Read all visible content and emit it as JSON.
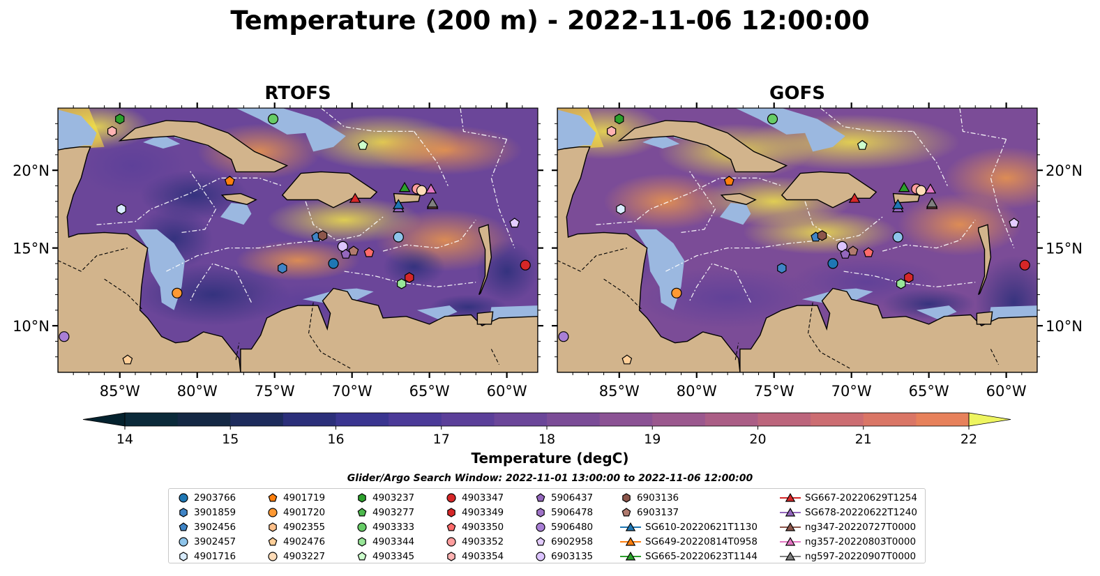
{
  "figure": {
    "title": "Temperature (200 m) - 2022-11-06 12:00:00",
    "panels": [
      {
        "title": "RTOFS"
      },
      {
        "title": "GOFS"
      }
    ]
  },
  "chart_data": {
    "type": "map",
    "variable": "Temperature (200 m)",
    "datetime": "2022-11-06 12:00:00",
    "lon_range": [
      -89,
      -58
    ],
    "lat_range": [
      7,
      24
    ],
    "lon_ticks": [
      "85°W",
      "80°W",
      "75°W",
      "70°W",
      "65°W",
      "60°W"
    ],
    "lon_tick_values": [
      -85,
      -80,
      -75,
      -70,
      -65,
      -60
    ],
    "lat_ticks": [
      "10°N",
      "15°N",
      "20°N"
    ],
    "lat_tick_values": [
      10,
      15,
      20
    ],
    "colorbar": {
      "label": "Temperature (degC)",
      "min": 14,
      "max": 22,
      "step": 0.5,
      "extend": "both",
      "tick_labels": [
        "14",
        "15",
        "16",
        "17",
        "18",
        "19",
        "20",
        "21",
        "22"
      ],
      "colors": [
        "#0b2a3a",
        "#142844",
        "#1d2b5c",
        "#2b2f7a",
        "#3a3590",
        "#4b3a98",
        "#5b3f99",
        "#6b4699",
        "#7b4c97",
        "#8b5294",
        "#9b588e",
        "#ab5e86",
        "#bc657c",
        "#cc6d72",
        "#da7666",
        "#e7815b",
        "#f08e4f",
        "#f59c45",
        "#f7ab3e",
        "#f8bc3b",
        "#f6d03e",
        "#f2e448"
      ],
      "under_color": "#04222e",
      "over_color": "#eef560"
    },
    "land_color": "#d2b48c",
    "shallow_water_color": "#9bb8e0",
    "markers": [
      {
        "id": "5906480",
        "lon": -88.6,
        "lat": 9.3,
        "shape": "circle",
        "color": "#a97fd6"
      },
      {
        "id": "4902476",
        "lon": -84.5,
        "lat": 7.8,
        "shape": "pentagon",
        "color": "#ffcf99"
      },
      {
        "id": "4903237",
        "lon": -85.0,
        "lat": 23.3,
        "shape": "hexagon",
        "color": "#2ca02c"
      },
      {
        "id": "4903354",
        "lon": -85.5,
        "lat": 22.5,
        "shape": "hexagon",
        "color": "#ffb3b3"
      },
      {
        "id": "4903333",
        "lon": -75.1,
        "lat": 23.3,
        "shape": "circle",
        "color": "#66cc66"
      },
      {
        "id": "4903345",
        "lon": -69.3,
        "lat": 21.6,
        "shape": "pentagon",
        "color": "#ccffcc"
      },
      {
        "id": "4901719",
        "lon": -77.9,
        "lat": 19.3,
        "shape": "pentagon",
        "color": "#ff7f0e"
      },
      {
        "id": "4901716",
        "lon": -84.9,
        "lat": 17.5,
        "shape": "hexagon",
        "color": "#d8ecff"
      },
      {
        "id": "4901720",
        "lon": -81.3,
        "lat": 12.1,
        "shape": "circle",
        "color": "#ff9933"
      },
      {
        "id": "3902456",
        "lon": -72.3,
        "lat": 15.7,
        "shape": "pentagon",
        "color": "#3f84c6"
      },
      {
        "id": "6903136",
        "lon": -71.9,
        "lat": 15.8,
        "shape": "hexagon",
        "color": "#8c564b"
      },
      {
        "id": "3901859",
        "lon": -74.5,
        "lat": 13.7,
        "shape": "hexagon",
        "color": "#3f84c6"
      },
      {
        "id": "2903766",
        "lon": -71.2,
        "lat": 14.0,
        "shape": "circle",
        "color": "#1f77b4"
      },
      {
        "id": "6903135",
        "lon": -70.6,
        "lat": 15.1,
        "shape": "circle",
        "color": "#dcc4ff"
      },
      {
        "id": "5906437",
        "lon": -70.4,
        "lat": 14.6,
        "shape": "pentagon",
        "color": "#9467bd"
      },
      {
        "id": "6903137",
        "lon": -69.9,
        "lat": 14.8,
        "shape": "pentagon",
        "color": "#b07a6e"
      },
      {
        "id": "4903350",
        "lon": -68.9,
        "lat": 14.7,
        "shape": "pentagon",
        "color": "#ff6b6b"
      },
      {
        "id": "3902457",
        "lon": -67.0,
        "lat": 15.7,
        "shape": "circle",
        "color": "#8ec4ea"
      },
      {
        "id": "4903344",
        "lon": -66.8,
        "lat": 12.7,
        "shape": "hexagon",
        "color": "#98e698"
      },
      {
        "id": "4903349",
        "lon": -66.3,
        "lat": 13.1,
        "shape": "hexagon",
        "color": "#d62728"
      },
      {
        "id": "4903352",
        "lon": -65.8,
        "lat": 18.8,
        "shape": "circle",
        "color": "#ff9e9e"
      },
      {
        "id": "4903227",
        "lon": -65.5,
        "lat": 18.7,
        "shape": "circle",
        "color": "#ffdcb8"
      },
      {
        "id": "4903347",
        "lon": -58.8,
        "lat": 13.9,
        "shape": "circle",
        "color": "#d62728"
      },
      {
        "id": "6902958",
        "lon": -59.5,
        "lat": 16.6,
        "shape": "pentagon",
        "color": "#e3ccff"
      },
      {
        "id": "SG665-20220623T1144",
        "lon": -66.6,
        "lat": 18.9,
        "shape": "triangle",
        "color": "#2ca02c"
      },
      {
        "id": "SG667-20220629T1254",
        "lon": -69.8,
        "lat": 18.2,
        "shape": "triangle",
        "color": "#d62728"
      },
      {
        "id": "SG678-20220622T1240",
        "lon": -67.0,
        "lat": 17.6,
        "shape": "triangle",
        "color": "#9467bd"
      },
      {
        "id": "SG610-20220621T1130",
        "lon": -67.0,
        "lat": 17.8,
        "shape": "triangle",
        "color": "#1f77b4"
      },
      {
        "id": "ng347-20220727T0000",
        "lon": -64.8,
        "lat": 17.8,
        "shape": "triangle",
        "color": "#8c564b"
      },
      {
        "id": "ng357-20220803T0000",
        "lon": -64.9,
        "lat": 18.8,
        "shape": "triangle",
        "color": "#e377c2"
      },
      {
        "id": "ng597-20220907T0000",
        "lon": -64.8,
        "lat": 17.9,
        "shape": "triangle",
        "color": "#7f7f7f"
      }
    ]
  },
  "legend": {
    "title": "Glider/Argo Search Window: 2022-11-01 13:00:00 to 2022-11-06 12:00:00",
    "columns": [
      [
        {
          "label": "2903766",
          "shape": "circle",
          "color": "#1f77b4"
        },
        {
          "label": "3901859",
          "shape": "hexagon",
          "color": "#3f84c6"
        },
        {
          "label": "3902456",
          "shape": "pentagon",
          "color": "#3f84c6"
        },
        {
          "label": "3902457",
          "shape": "circle",
          "color": "#8ec4ea"
        },
        {
          "label": "4901716",
          "shape": "hexagon",
          "color": "#d8ecff"
        }
      ],
      [
        {
          "label": "4901719",
          "shape": "pentagon",
          "color": "#ff7f0e"
        },
        {
          "label": "4901720",
          "shape": "circle",
          "color": "#ff9933"
        },
        {
          "label": "4902355",
          "shape": "hexagon",
          "color": "#ffc08a"
        },
        {
          "label": "4902476",
          "shape": "pentagon",
          "color": "#ffcf99"
        },
        {
          "label": "4903227",
          "shape": "circle",
          "color": "#ffdcb8"
        }
      ],
      [
        {
          "label": "4903237",
          "shape": "hexagon",
          "color": "#2ca02c"
        },
        {
          "label": "4903277",
          "shape": "pentagon",
          "color": "#4cb84c"
        },
        {
          "label": "4903333",
          "shape": "circle",
          "color": "#66cc66"
        },
        {
          "label": "4903344",
          "shape": "hexagon",
          "color": "#98e698"
        },
        {
          "label": "4903345",
          "shape": "pentagon",
          "color": "#ccffcc"
        }
      ],
      [
        {
          "label": "4903347",
          "shape": "circle",
          "color": "#d62728"
        },
        {
          "label": "4903349",
          "shape": "hexagon",
          "color": "#d62728"
        },
        {
          "label": "4903350",
          "shape": "pentagon",
          "color": "#ff6b6b"
        },
        {
          "label": "4903352",
          "shape": "circle",
          "color": "#ff9e9e"
        },
        {
          "label": "4903354",
          "shape": "hexagon",
          "color": "#ffb3b3"
        }
      ],
      [
        {
          "label": "5906437",
          "shape": "pentagon",
          "color": "#9467bd"
        },
        {
          "label": "5906478",
          "shape": "hexagon",
          "color": "#9f73c8"
        },
        {
          "label": "5906480",
          "shape": "circle",
          "color": "#a97fd6"
        },
        {
          "label": "6902958",
          "shape": "pentagon",
          "color": "#e3ccff"
        },
        {
          "label": "6903135",
          "shape": "circle",
          "color": "#dcc4ff"
        }
      ],
      [
        {
          "label": "6903136",
          "shape": "hexagon",
          "color": "#8c564b"
        },
        {
          "label": "6903137",
          "shape": "pentagon",
          "color": "#b07a6e"
        },
        {
          "label": "SG610-20220621T1130",
          "shape": "triangle-line",
          "color": "#1f77b4"
        },
        {
          "label": "SG649-20220814T0958",
          "shape": "triangle-line",
          "color": "#ff7f0e"
        },
        {
          "label": "SG665-20220623T1144",
          "shape": "triangle-line",
          "color": "#2ca02c"
        }
      ],
      [
        {
          "label": "SG667-20220629T1254",
          "shape": "triangle-line",
          "color": "#d62728"
        },
        {
          "label": "SG678-20220622T1240",
          "shape": "triangle-line",
          "color": "#9467bd"
        },
        {
          "label": "ng347-20220727T0000",
          "shape": "triangle-line",
          "color": "#8c564b"
        },
        {
          "label": "ng357-20220803T0000",
          "shape": "triangle-line",
          "color": "#e377c2"
        },
        {
          "label": "ng597-20220907T0000",
          "shape": "triangle-line",
          "color": "#7f7f7f"
        }
      ]
    ]
  }
}
